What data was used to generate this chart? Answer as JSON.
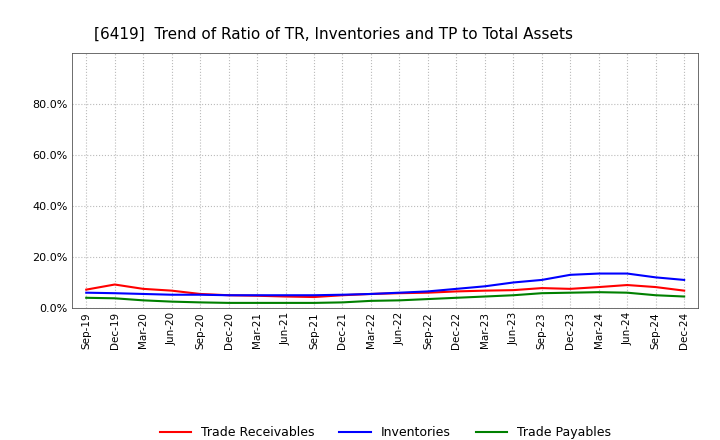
{
  "title": "[6419]  Trend of Ratio of TR, Inventories and TP to Total Assets",
  "x_labels": [
    "Sep-19",
    "Dec-19",
    "Mar-20",
    "Jun-20",
    "Sep-20",
    "Dec-20",
    "Mar-21",
    "Jun-21",
    "Sep-21",
    "Dec-21",
    "Mar-22",
    "Jun-22",
    "Sep-22",
    "Dec-22",
    "Mar-23",
    "Jun-23",
    "Sep-23",
    "Dec-23",
    "Mar-24",
    "Jun-24",
    "Sep-24",
    "Dec-24"
  ],
  "trade_receivables": [
    0.072,
    0.092,
    0.075,
    0.068,
    0.055,
    0.05,
    0.048,
    0.045,
    0.043,
    0.05,
    0.055,
    0.058,
    0.06,
    0.065,
    0.068,
    0.07,
    0.078,
    0.075,
    0.082,
    0.09,
    0.082,
    0.068
  ],
  "inventories": [
    0.06,
    0.058,
    0.055,
    0.052,
    0.052,
    0.05,
    0.05,
    0.05,
    0.05,
    0.052,
    0.055,
    0.06,
    0.065,
    0.075,
    0.085,
    0.1,
    0.11,
    0.13,
    0.135,
    0.135,
    0.12,
    0.11
  ],
  "trade_payables": [
    0.04,
    0.038,
    0.03,
    0.025,
    0.022,
    0.02,
    0.02,
    0.02,
    0.02,
    0.022,
    0.028,
    0.03,
    0.035,
    0.04,
    0.045,
    0.05,
    0.058,
    0.06,
    0.062,
    0.06,
    0.05,
    0.045
  ],
  "ylim": [
    0,
    1.0
  ],
  "yticks": [
    0.0,
    0.2,
    0.4,
    0.6,
    0.8
  ],
  "ytick_labels": [
    "0.0%",
    "20.0%",
    "40.0%",
    "60.0%",
    "80.0%"
  ],
  "line_colors": [
    "#ff0000",
    "#0000ff",
    "#008000"
  ],
  "legend_labels": [
    "Trade Receivables",
    "Inventories",
    "Trade Payables"
  ],
  "bg_color": "#ffffff",
  "plot_bg_color": "#ffffff",
  "grid_color": "#bbbbbb",
  "title_fontsize": 11,
  "axis_fontsize": 7.5,
  "legend_fontsize": 9
}
